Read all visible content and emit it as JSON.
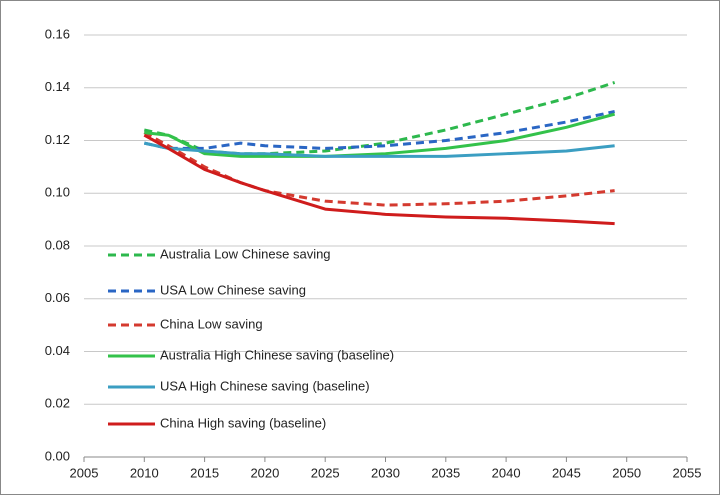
{
  "chart_data": {
    "type": "line",
    "x": [
      2010,
      2012,
      2015,
      2018,
      2020,
      2025,
      2030,
      2035,
      2040,
      2045,
      2049
    ],
    "series": [
      {
        "name": "Australia Low Chinese saving",
        "color": "#2db84d",
        "line_style": "dashed",
        "values": [
          0.124,
          0.122,
          0.116,
          0.115,
          0.115,
          0.116,
          0.119,
          0.124,
          0.13,
          0.136,
          0.142
        ]
      },
      {
        "name": "USA Low Chinese saving",
        "color": "#2a66c4",
        "line_style": "dashed",
        "values": [
          0.119,
          0.117,
          0.117,
          0.119,
          0.118,
          0.117,
          0.118,
          0.12,
          0.123,
          0.127,
          0.131
        ]
      },
      {
        "name": "China Low saving",
        "color": "#d43a2f",
        "line_style": "dashed",
        "values": [
          0.123,
          0.118,
          0.11,
          0.104,
          0.101,
          0.097,
          0.0955,
          0.096,
          0.097,
          0.099,
          0.101
        ]
      },
      {
        "name": "Australia High Chinese saving (baseline)",
        "color": "#33c24a",
        "line_style": "solid",
        "values": [
          0.123,
          0.122,
          0.115,
          0.114,
          0.114,
          0.114,
          0.115,
          0.117,
          0.12,
          0.125,
          0.13
        ]
      },
      {
        "name": "USA High Chinese saving (baseline)",
        "color": "#3b9ec2",
        "line_style": "solid",
        "values": [
          0.119,
          0.117,
          0.116,
          0.115,
          0.115,
          0.114,
          0.114,
          0.114,
          0.115,
          0.116,
          0.118
        ]
      },
      {
        "name": "China High saving (baseline)",
        "color": "#cf1c1c",
        "line_style": "solid",
        "values": [
          0.122,
          0.117,
          0.109,
          0.104,
          0.101,
          0.094,
          0.092,
          0.091,
          0.0905,
          0.0895,
          0.0885
        ]
      }
    ],
    "xlim": [
      2005,
      2055
    ],
    "xticks": [
      2005,
      2010,
      2015,
      2020,
      2025,
      2030,
      2035,
      2040,
      2045,
      2050,
      2055
    ],
    "ylim": [
      0,
      0.16
    ],
    "yticks": [
      {
        "value": 0,
        "label": "0.00"
      },
      0.02,
      0.04,
      0.06,
      0.08,
      {
        "value": 0.1,
        "label": "0.10"
      },
      0.12,
      0.14,
      0.16
    ],
    "grid": true,
    "legend": "left"
  }
}
